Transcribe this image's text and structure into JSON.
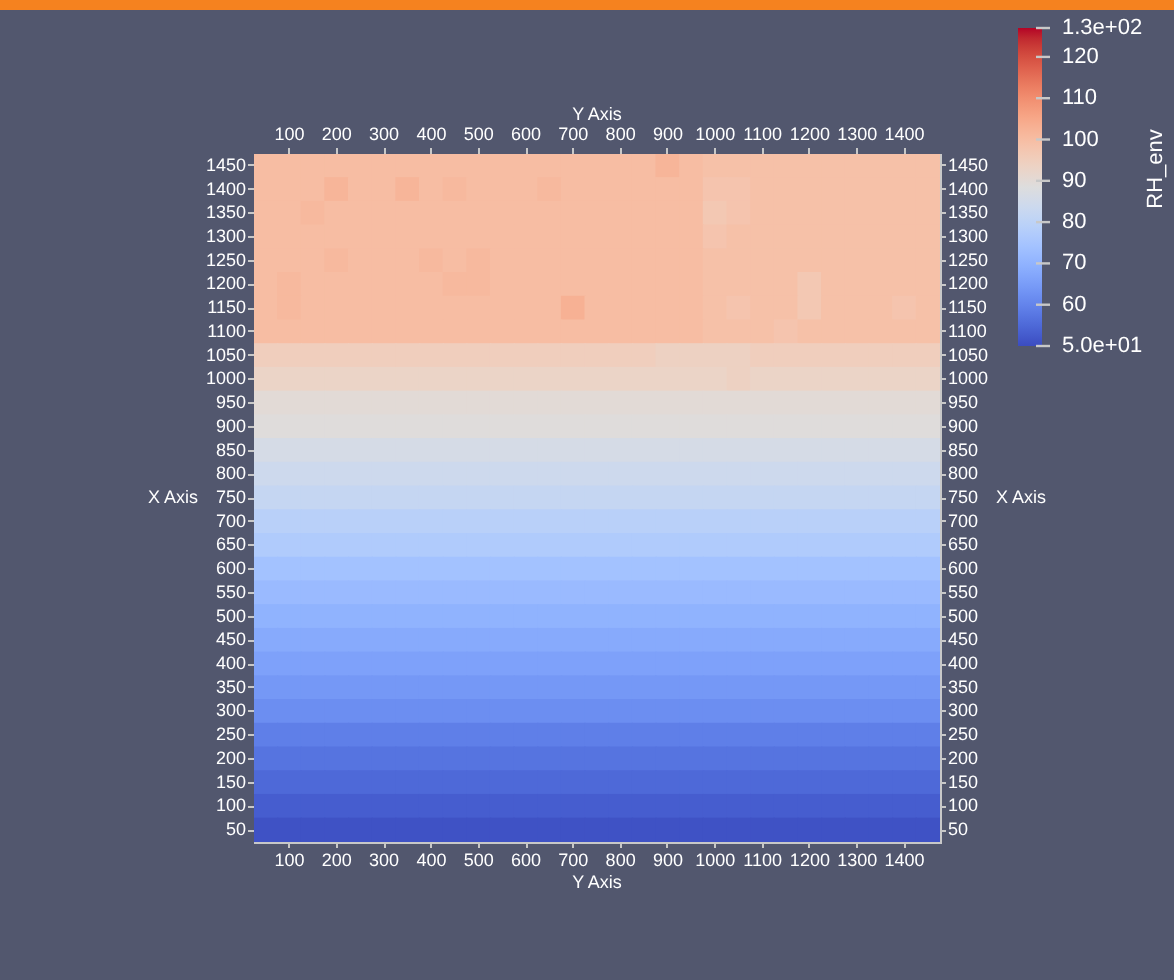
{
  "chart_data": {
    "type": "heatmap",
    "xlabel": "Y Axis",
    "x2label": "Y Axis",
    "ylabel": "X Axis",
    "y2label": "X Axis",
    "clabel": "RH_env",
    "categories": [
      null,
      "100",
      null,
      "200",
      null,
      "300",
      null,
      "400",
      null,
      "500",
      null,
      "600",
      null,
      "700",
      null,
      "800",
      null,
      "900",
      null,
      "1000",
      null,
      "1100",
      null,
      "1200",
      null,
      "1300",
      null,
      "1400",
      null
    ],
    "y_categories": [
      "1450",
      "1400",
      "1350",
      "1300",
      "1250",
      "1200",
      "1150",
      "1100",
      "1050",
      "1000",
      "950",
      "900",
      "850",
      "800",
      "750",
      "700",
      "650",
      "600",
      "550",
      "500",
      "450",
      "400",
      "350",
      "300",
      "250",
      "200",
      "150",
      "100",
      "50"
    ],
    "y2_categories": [
      "1450",
      "1400",
      "1350",
      "1300",
      "1250",
      "1200",
      "1150",
      "1100",
      "1050",
      "1000",
      "950",
      "900",
      "850",
      "800",
      "750",
      "700",
      "650",
      "600",
      "550",
      "500",
      "450",
      "400",
      "350",
      "300",
      "250",
      "200",
      "150",
      "100",
      "50"
    ],
    "clim": [
      50,
      127
    ],
    "cticks": [
      {
        "value": 127,
        "label": "1.3e+02"
      },
      120,
      110,
      100,
      90,
      80,
      70,
      60,
      {
        "value": 50,
        "label": "5.0e+01"
      }
    ],
    "cells": [
      [
        100,
        100,
        100,
        100,
        100,
        100,
        100,
        100,
        100,
        100,
        100,
        100,
        100,
        100,
        100,
        100,
        100,
        102,
        100,
        99,
        99,
        99,
        99,
        99,
        99,
        99,
        99,
        99,
        99
      ],
      [
        100,
        100,
        100,
        102,
        100,
        100,
        102,
        100,
        101,
        100,
        100,
        100,
        101,
        100,
        100,
        100,
        100,
        100,
        100,
        98,
        98,
        99,
        99,
        99,
        99,
        99,
        99,
        99,
        99
      ],
      [
        100,
        100,
        101,
        100,
        100,
        100,
        100,
        100,
        100,
        100,
        100,
        100,
        100,
        100,
        100,
        100,
        100,
        100,
        100,
        97,
        98,
        99,
        99,
        99,
        99,
        99,
        99,
        99,
        99
      ],
      [
        100,
        100,
        100,
        100,
        100,
        100,
        100,
        100,
        100,
        100,
        100,
        100,
        100,
        100,
        100,
        100,
        100,
        100,
        100,
        98,
        99,
        99,
        99,
        99,
        99,
        99,
        99,
        99,
        99
      ],
      [
        100,
        100,
        100,
        101,
        100,
        100,
        100,
        101,
        100,
        101,
        100,
        100,
        100,
        100,
        100,
        100,
        100,
        100,
        100,
        99,
        99,
        99,
        99,
        99,
        99,
        99,
        99,
        99,
        99
      ],
      [
        100,
        101,
        100,
        100,
        100,
        100,
        100,
        100,
        101,
        101,
        100,
        100,
        100,
        100,
        100,
        100,
        100,
        100,
        100,
        99,
        99,
        99,
        99,
        97,
        99,
        99,
        99,
        99,
        99
      ],
      [
        100,
        101,
        100,
        100,
        100,
        100,
        100,
        100,
        100,
        100,
        100,
        100,
        100,
        103,
        100,
        100,
        100,
        100,
        100,
        99,
        98,
        99,
        99,
        97,
        99,
        99,
        99,
        98,
        99
      ],
      [
        100,
        100,
        100,
        100,
        100,
        100,
        100,
        100,
        100,
        100,
        100,
        100,
        100,
        100,
        100,
        100,
        100,
        100,
        100,
        99,
        99,
        99,
        98,
        99,
        99,
        99,
        99,
        99,
        99
      ],
      [
        95,
        95,
        95,
        95,
        95,
        95,
        95,
        95,
        95,
        95,
        95,
        95,
        95,
        95,
        95,
        95,
        95,
        94,
        94,
        94,
        94,
        95,
        95,
        95,
        95,
        95,
        95,
        95,
        95
      ],
      [
        93,
        93,
        93,
        93,
        93,
        93,
        93,
        93,
        93,
        93,
        93,
        93,
        93,
        93,
        93,
        93,
        93,
        93,
        93,
        93,
        94,
        93,
        93,
        93,
        93,
        93,
        93,
        93,
        93
      ],
      [
        90,
        90,
        90,
        90,
        90,
        90,
        90,
        90,
        90,
        90,
        90,
        90,
        90,
        90,
        90,
        90,
        90,
        90,
        90,
        90,
        90,
        90,
        90,
        90,
        90,
        90,
        90,
        90,
        90
      ],
      [
        89,
        89,
        89,
        89,
        89,
        89,
        89,
        89,
        89,
        89,
        89,
        89,
        89,
        89,
        89,
        89,
        89,
        89,
        89,
        89,
        89,
        89,
        89,
        89,
        89,
        89,
        89,
        89,
        89
      ],
      [
        86,
        86,
        86,
        86,
        86,
        86,
        86,
        86,
        86,
        86,
        86,
        86,
        86,
        86,
        86,
        86,
        86,
        86,
        86,
        86,
        86,
        86,
        86,
        86,
        86,
        86,
        86,
        86,
        86
      ],
      [
        84,
        84,
        84,
        84,
        84,
        84,
        84,
        84,
        84,
        84,
        84,
        84,
        84,
        84,
        84,
        84,
        84,
        84,
        84,
        84,
        84,
        84,
        84,
        84,
        84,
        84,
        84,
        84,
        84
      ],
      [
        82,
        82,
        82,
        82,
        82,
        82,
        82,
        82,
        82,
        82,
        82,
        82,
        82,
        82,
        82,
        82,
        82,
        82,
        82,
        82,
        82,
        82,
        82,
        82,
        82,
        82,
        82,
        82,
        82
      ],
      [
        79,
        79,
        79,
        79,
        79,
        79,
        79,
        79,
        79,
        79,
        79,
        79,
        79,
        79,
        79,
        79,
        79,
        79,
        79,
        79,
        79,
        79,
        79,
        79,
        79,
        79,
        79,
        79,
        79
      ],
      [
        77,
        77,
        77,
        77,
        77,
        77,
        77,
        77,
        77,
        77,
        77,
        77,
        77,
        77,
        77,
        77,
        77,
        77,
        77,
        77,
        77,
        77,
        77,
        77,
        77,
        77,
        77,
        77,
        77
      ],
      [
        74,
        74,
        74,
        74,
        74,
        74,
        74,
        74,
        74,
        74,
        74,
        74,
        74,
        74,
        74,
        74,
        74,
        74,
        74,
        74,
        74,
        74,
        74,
        74,
        74,
        74,
        74,
        74,
        74
      ],
      [
        72,
        72,
        72,
        72,
        72,
        72,
        72,
        72,
        72,
        72,
        72,
        72,
        72,
        72,
        72,
        72,
        72,
        72,
        72,
        72,
        72,
        72,
        72,
        72,
        72,
        72,
        72,
        72,
        72
      ],
      [
        70,
        70,
        70,
        70,
        70,
        70,
        70,
        70,
        70,
        70,
        70,
        70,
        70,
        70,
        70,
        70,
        70,
        70,
        70,
        70,
        70,
        70,
        70,
        70,
        70,
        70,
        70,
        70,
        70
      ],
      [
        68,
        68,
        68,
        68,
        68,
        68,
        68,
        68,
        68,
        68,
        68,
        68,
        68,
        68,
        68,
        68,
        68,
        68,
        68,
        68,
        68,
        68,
        68,
        68,
        68,
        68,
        68,
        68,
        68
      ],
      [
        66,
        66,
        66,
        66,
        66,
        66,
        66,
        66,
        66,
        66,
        66,
        66,
        66,
        66,
        66,
        66,
        66,
        66,
        66,
        66,
        66,
        66,
        66,
        66,
        66,
        66,
        66,
        66,
        66
      ],
      [
        64,
        64,
        64,
        64,
        64,
        64,
        64,
        64,
        64,
        64,
        64,
        64,
        64,
        64,
        64,
        64,
        64,
        64,
        64,
        64,
        64,
        64,
        64,
        64,
        64,
        64,
        64,
        64,
        64
      ],
      [
        62,
        62,
        62,
        62,
        62,
        62,
        62,
        62,
        62,
        62,
        62,
        62,
        62,
        62,
        62,
        62,
        62,
        62,
        62,
        62,
        62,
        62,
        62,
        62,
        62,
        62,
        62,
        62,
        62
      ],
      [
        59,
        59,
        59,
        59,
        59,
        59,
        59,
        59,
        59,
        59,
        59,
        59,
        59,
        59,
        59,
        59,
        59,
        59,
        59,
        59,
        59,
        59,
        59,
        59,
        59,
        59,
        59,
        59,
        59
      ],
      [
        57,
        57,
        57,
        57,
        57,
        57,
        57,
        57,
        57,
        57,
        57,
        57,
        57,
        57,
        57,
        57,
        57,
        57,
        57,
        57,
        57,
        57,
        57,
        57,
        57,
        57,
        57,
        57,
        57
      ],
      [
        55,
        55,
        55,
        55,
        55,
        55,
        55,
        55,
        55,
        55,
        55,
        55,
        55,
        55,
        55,
        55,
        55,
        55,
        55,
        55,
        55,
        55,
        55,
        55,
        55,
        55,
        55,
        55,
        55
      ],
      [
        53,
        53,
        53,
        53,
        53,
        53,
        53,
        53,
        53,
        53,
        53,
        53,
        53,
        53,
        53,
        53,
        53,
        53,
        53,
        53,
        53,
        53,
        53,
        53,
        53,
        53,
        53,
        53,
        53
      ],
      [
        51,
        51,
        51,
        51,
        51,
        51,
        51,
        51,
        51,
        51,
        51,
        51,
        51,
        51,
        51,
        51,
        51,
        51,
        51,
        51,
        51,
        51,
        51,
        51,
        51,
        51,
        51,
        51,
        51
      ]
    ]
  }
}
